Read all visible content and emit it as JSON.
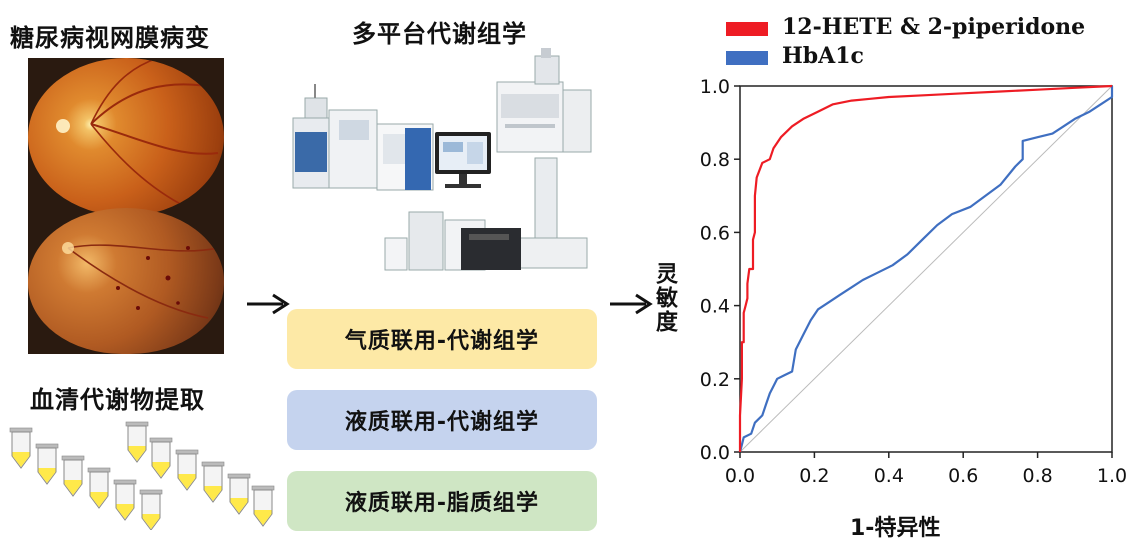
{
  "left": {
    "title": "糖尿病视网膜病变",
    "serum_title": "血清代谢物提取"
  },
  "middle": {
    "title": "多平台代谢组学",
    "methods": [
      {
        "label": "气质联用-代谢组学",
        "color": "#fde9a6"
      },
      {
        "label": "液质联用-代谢组学",
        "color": "#c5d3ee"
      },
      {
        "label": "液质联用-脂质组学",
        "color": "#cfe6c4"
      }
    ]
  },
  "chart_data": {
    "type": "line",
    "title": "",
    "xlabel": "1-特异性",
    "ylabel": "灵敏度",
    "xlim": [
      0,
      1
    ],
    "ylim": [
      0,
      1
    ],
    "xticks": [
      "0.0",
      "0.2",
      "0.4",
      "0.6",
      "0.8",
      "1.0"
    ],
    "yticks": [
      "0.0",
      "0.2",
      "0.4",
      "0.6",
      "0.8",
      "1.0"
    ],
    "legend": "top",
    "series": [
      {
        "name": "12-HETE & 2-piperidone",
        "color": "#ee1c24",
        "points": [
          [
            0,
            0
          ],
          [
            0,
            0.05
          ],
          [
            0,
            0.1
          ],
          [
            0.005,
            0.2
          ],
          [
            0.005,
            0.3
          ],
          [
            0.01,
            0.3
          ],
          [
            0.01,
            0.38
          ],
          [
            0.015,
            0.4
          ],
          [
            0.02,
            0.42
          ],
          [
            0.02,
            0.46
          ],
          [
            0.025,
            0.5
          ],
          [
            0.035,
            0.5
          ],
          [
            0.035,
            0.58
          ],
          [
            0.04,
            0.6
          ],
          [
            0.04,
            0.7
          ],
          [
            0.045,
            0.75
          ],
          [
            0.06,
            0.79
          ],
          [
            0.08,
            0.8
          ],
          [
            0.09,
            0.83
          ],
          [
            0.11,
            0.86
          ],
          [
            0.14,
            0.89
          ],
          [
            0.17,
            0.91
          ],
          [
            0.21,
            0.93
          ],
          [
            0.25,
            0.95
          ],
          [
            0.3,
            0.96
          ],
          [
            0.35,
            0.965
          ],
          [
            0.4,
            0.97
          ],
          [
            0.5,
            0.975
          ],
          [
            0.6,
            0.98
          ],
          [
            0.7,
            0.985
          ],
          [
            0.8,
            0.99
          ],
          [
            0.9,
            0.995
          ],
          [
            1,
            1
          ]
        ]
      },
      {
        "name": "HbA1c",
        "color": "#3f6fc1",
        "points": [
          [
            0,
            0
          ],
          [
            0.005,
            0.02
          ],
          [
            0.01,
            0.04
          ],
          [
            0.03,
            0.05
          ],
          [
            0.04,
            0.08
          ],
          [
            0.06,
            0.1
          ],
          [
            0.07,
            0.13
          ],
          [
            0.08,
            0.16
          ],
          [
            0.09,
            0.18
          ],
          [
            0.1,
            0.2
          ],
          [
            0.12,
            0.21
          ],
          [
            0.14,
            0.22
          ],
          [
            0.15,
            0.28
          ],
          [
            0.17,
            0.32
          ],
          [
            0.19,
            0.36
          ],
          [
            0.21,
            0.39
          ],
          [
            0.24,
            0.41
          ],
          [
            0.27,
            0.43
          ],
          [
            0.3,
            0.45
          ],
          [
            0.33,
            0.47
          ],
          [
            0.37,
            0.49
          ],
          [
            0.41,
            0.51
          ],
          [
            0.45,
            0.54
          ],
          [
            0.49,
            0.58
          ],
          [
            0.53,
            0.62
          ],
          [
            0.57,
            0.65
          ],
          [
            0.62,
            0.67
          ],
          [
            0.66,
            0.7
          ],
          [
            0.7,
            0.73
          ],
          [
            0.74,
            0.78
          ],
          [
            0.76,
            0.8
          ],
          [
            0.76,
            0.85
          ],
          [
            0.8,
            0.86
          ],
          [
            0.84,
            0.87
          ],
          [
            0.87,
            0.89
          ],
          [
            0.9,
            0.91
          ],
          [
            0.94,
            0.93
          ],
          [
            0.97,
            0.95
          ],
          [
            1,
            0.97
          ],
          [
            1,
            1
          ]
        ]
      }
    ]
  }
}
